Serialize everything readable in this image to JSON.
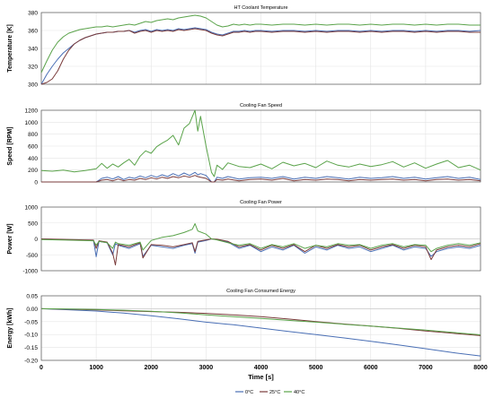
{
  "chart_data": [
    {
      "type": "line",
      "title": "HT Coolant Temperature",
      "ylabel": "Temperature [K]",
      "xlabel": "",
      "xlim": [
        0,
        8000
      ],
      "ylim": [
        300,
        380
      ],
      "yticks": [
        "300",
        "320",
        "340",
        "360",
        "380"
      ],
      "grid": true,
      "x": [
        0,
        100,
        200,
        300,
        400,
        500,
        600,
        700,
        800,
        900,
        1000,
        1100,
        1200,
        1300,
        1400,
        1500,
        1600,
        1700,
        1800,
        1900,
        2000,
        2100,
        2200,
        2300,
        2400,
        2500,
        2600,
        2700,
        2800,
        2900,
        3000,
        3100,
        3200,
        3300,
        3400,
        3500,
        3600,
        3700,
        3800,
        3900,
        4000,
        4200,
        4400,
        4600,
        4800,
        5000,
        5200,
        5400,
        5600,
        5800,
        6000,
        6200,
        6400,
        6600,
        6800,
        7000,
        7200,
        7400,
        7600,
        7800,
        8000
      ],
      "series": [
        {
          "name": "0°C",
          "color": "#4a6fb5",
          "values": [
            300,
            311,
            320,
            328,
            335,
            340,
            345,
            349,
            352,
            354,
            356,
            357,
            358,
            358,
            359,
            359,
            360,
            358,
            360,
            361,
            359,
            361,
            360,
            361,
            360,
            362,
            361,
            362,
            363,
            362,
            361,
            358,
            356,
            355,
            357,
            359,
            359,
            360,
            359,
            360,
            360,
            359,
            360,
            360,
            359,
            360,
            359,
            360,
            360,
            359,
            360,
            359,
            360,
            360,
            359,
            360,
            359,
            360,
            360,
            359,
            360
          ]
        },
        {
          "name": "25°C",
          "color": "#7a3b3b",
          "values": [
            300,
            302,
            306,
            315,
            328,
            338,
            345,
            349,
            352,
            354,
            356,
            357,
            358,
            358,
            359,
            359,
            360,
            357,
            359,
            360,
            358,
            360,
            359,
            360,
            359,
            361,
            360,
            361,
            362,
            361,
            360,
            357,
            355,
            354,
            356,
            358,
            358,
            359,
            358,
            359,
            359,
            358,
            359,
            359,
            358,
            359,
            358,
            359,
            359,
            358,
            359,
            358,
            359,
            359,
            358,
            359,
            358,
            359,
            359,
            358,
            358
          ]
        },
        {
          "name": "40°C",
          "color": "#5aa34a",
          "values": [
            313,
            326,
            338,
            347,
            353,
            357,
            359,
            361,
            362,
            363,
            364,
            364,
            365,
            364,
            365,
            366,
            367,
            366,
            368,
            370,
            369,
            371,
            372,
            373,
            372,
            374,
            375,
            376,
            377,
            376,
            374,
            370,
            366,
            364,
            365,
            367,
            366,
            367,
            366,
            367,
            367,
            366,
            367,
            367,
            366,
            367,
            366,
            367,
            367,
            366,
            367,
            366,
            367,
            367,
            366,
            367,
            366,
            367,
            367,
            366,
            366
          ]
        }
      ]
    },
    {
      "type": "line",
      "title": "Cooling Fan Speed",
      "ylabel": "Speed [RPM]",
      "xlabel": "",
      "xlim": [
        0,
        8000
      ],
      "ylim": [
        0,
        1200
      ],
      "yticks": [
        "0",
        "200",
        "400",
        "600",
        "800",
        "1000",
        "1200"
      ],
      "grid": true,
      "x": [
        0,
        200,
        400,
        600,
        800,
        1000,
        1100,
        1200,
        1300,
        1400,
        1500,
        1600,
        1700,
        1800,
        1900,
        2000,
        2100,
        2200,
        2300,
        2400,
        2500,
        2600,
        2700,
        2800,
        2850,
        2900,
        3000,
        3100,
        3150,
        3200,
        3300,
        3400,
        3600,
        3800,
        4000,
        4200,
        4400,
        4600,
        4800,
        5000,
        5200,
        5400,
        5600,
        5800,
        6000,
        6200,
        6400,
        6600,
        6800,
        7000,
        7200,
        7400,
        7600,
        7800,
        8000
      ],
      "series": [
        {
          "name": "0°C",
          "color": "#4a6fb5",
          "values": [
            0,
            0,
            0,
            0,
            0,
            0,
            60,
            80,
            50,
            90,
            40,
            80,
            60,
            100,
            70,
            110,
            80,
            120,
            90,
            140,
            100,
            150,
            110,
            160,
            120,
            140,
            110,
            0,
            0,
            80,
            60,
            90,
            50,
            70,
            80,
            60,
            90,
            50,
            80,
            60,
            90,
            70,
            50,
            80,
            60,
            70,
            90,
            60,
            80,
            50,
            70,
            90,
            60,
            80,
            40
          ]
        },
        {
          "name": "25°C",
          "color": "#7a3b3b",
          "values": [
            0,
            0,
            0,
            0,
            0,
            0,
            30,
            40,
            20,
            50,
            20,
            40,
            30,
            60,
            40,
            70,
            50,
            80,
            60,
            90,
            70,
            100,
            80,
            110,
            90,
            80,
            60,
            0,
            0,
            40,
            30,
            50,
            20,
            40,
            50,
            30,
            60,
            20,
            40,
            30,
            50,
            40,
            20,
            40,
            30,
            40,
            50,
            30,
            40,
            20,
            40,
            50,
            30,
            40,
            20
          ]
        },
        {
          "name": "40°C",
          "color": "#5aa34a",
          "values": [
            190,
            180,
            200,
            170,
            190,
            220,
            310,
            230,
            300,
            250,
            320,
            380,
            280,
            430,
            520,
            480,
            590,
            650,
            700,
            780,
            620,
            900,
            980,
            1200,
            850,
            1100,
            600,
            160,
            90,
            280,
            210,
            320,
            260,
            240,
            300,
            220,
            330,
            270,
            310,
            240,
            350,
            280,
            250,
            300,
            260,
            290,
            340,
            250,
            320,
            230,
            300,
            360,
            240,
            280,
            200
          ]
        }
      ]
    },
    {
      "type": "line",
      "title": "Cooling Fan Power",
      "ylabel": "Power [W]",
      "xlabel": "",
      "xlim": [
        0,
        8000
      ],
      "ylim": [
        -1000,
        1000
      ],
      "yticks": [
        "-1000",
        "-500",
        "0",
        "500",
        "1000"
      ],
      "grid": true,
      "x": [
        0,
        500,
        950,
        1000,
        1050,
        1200,
        1300,
        1350,
        1400,
        1600,
        1800,
        1850,
        2000,
        2200,
        2400,
        2600,
        2750,
        2800,
        2850,
        3000,
        3100,
        3200,
        3400,
        3600,
        3800,
        4000,
        4200,
        4400,
        4600,
        4800,
        5000,
        5200,
        5400,
        5600,
        5800,
        6000,
        6200,
        6400,
        6600,
        6800,
        7000,
        7100,
        7200,
        7400,
        7600,
        7800,
        8000
      ],
      "series": [
        {
          "name": "0°C",
          "color": "#4a6fb5",
          "values": [
            0,
            -30,
            -50,
            -560,
            -80,
            -120,
            -500,
            -150,
            -200,
            -300,
            -150,
            -550,
            -200,
            -250,
            -300,
            -200,
            -150,
            -450,
            -100,
            -50,
            0,
            -20,
            -100,
            -300,
            -200,
            -400,
            -250,
            -350,
            -200,
            -450,
            -250,
            -350,
            -200,
            -300,
            -250,
            -400,
            -300,
            -200,
            -350,
            -250,
            -300,
            -550,
            -400,
            -300,
            -250,
            -300,
            -200
          ]
        },
        {
          "name": "25°C",
          "color": "#7a3b3b",
          "values": [
            0,
            -20,
            -40,
            -300,
            -60,
            -100,
            -450,
            -820,
            -180,
            -250,
            -120,
            -600,
            -180,
            -200,
            -250,
            -180,
            -120,
            -400,
            -80,
            -30,
            0,
            -10,
            -80,
            -250,
            -180,
            -350,
            -200,
            -300,
            -180,
            -400,
            -200,
            -300,
            -180,
            -250,
            -200,
            -350,
            -250,
            -180,
            -300,
            -200,
            -250,
            -650,
            -350,
            -250,
            -200,
            -250,
            -150
          ]
        },
        {
          "name": "40°C",
          "color": "#5aa34a",
          "values": [
            -20,
            -40,
            -60,
            -200,
            -80,
            -120,
            -300,
            -100,
            -150,
            -200,
            -100,
            -350,
            -50,
            50,
            100,
            200,
            300,
            480,
            250,
            150,
            0,
            -30,
            -120,
            -200,
            -150,
            -300,
            -180,
            -250,
            -150,
            -300,
            -200,
            -250,
            -150,
            -200,
            -180,
            -300,
            -200,
            -150,
            -250,
            -180,
            -200,
            -400,
            -300,
            -200,
            -150,
            -200,
            -120
          ]
        }
      ]
    },
    {
      "type": "line",
      "title": "Cooling Fan Consumed Energy",
      "ylabel": "Energy [kWh]",
      "xlabel": "Time [s]",
      "xlim": [
        0,
        8000
      ],
      "ylim": [
        -0.2,
        0.05
      ],
      "yticks": [
        "-0.20",
        "-0.15",
        "-0.10",
        "-0.05",
        "0.00",
        "0.05"
      ],
      "xticks": [
        "0",
        "1000",
        "2000",
        "3000",
        "4000",
        "5000",
        "6000",
        "7000",
        "8000"
      ],
      "grid": true,
      "x": [
        0,
        500,
        1000,
        1500,
        2000,
        2500,
        3000,
        3500,
        4000,
        4500,
        5000,
        5500,
        6000,
        6500,
        7000,
        7500,
        8000
      ],
      "series": [
        {
          "name": "0°C",
          "color": "#4a6fb5",
          "values": [
            0,
            -0.004,
            -0.009,
            -0.017,
            -0.027,
            -0.039,
            -0.052,
            -0.062,
            -0.075,
            -0.088,
            -0.1,
            -0.113,
            -0.126,
            -0.14,
            -0.155,
            -0.17,
            -0.183
          ]
        },
        {
          "name": "25°C",
          "color": "#7a3b3b",
          "values": [
            0,
            -0.002,
            -0.005,
            -0.008,
            -0.011,
            -0.014,
            -0.018,
            -0.024,
            -0.031,
            -0.04,
            -0.05,
            -0.059,
            -0.067,
            -0.076,
            -0.086,
            -0.095,
            -0.104
          ]
        },
        {
          "name": "40°C",
          "color": "#5aa34a",
          "values": [
            0,
            -0.001,
            -0.003,
            -0.006,
            -0.01,
            -0.016,
            -0.024,
            -0.031,
            -0.038,
            -0.045,
            -0.052,
            -0.06,
            -0.067,
            -0.075,
            -0.083,
            -0.092,
            -0.101
          ]
        }
      ]
    }
  ],
  "legend": {
    "placement": "bottom-right",
    "items": [
      {
        "label": "0°C",
        "color": "#4a6fb5"
      },
      {
        "label": "25°C",
        "color": "#7a3b3b"
      },
      {
        "label": "40°C",
        "color": "#5aa34a"
      }
    ]
  }
}
